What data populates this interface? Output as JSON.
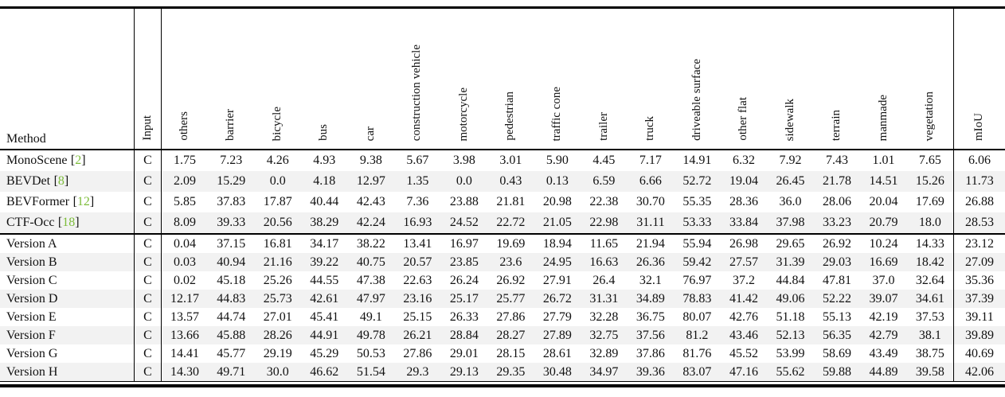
{
  "colors": {
    "stripe": "#f2f2f2",
    "citation_green": "#7cbc39",
    "rule": "#000000",
    "text": "#111111",
    "background": "#ffffff"
  },
  "table": {
    "method_header": "Method",
    "input_header": "Input",
    "miou_header": "mIoU",
    "citation_brackets": {
      "open": "[",
      "close": "]"
    },
    "class_headers": [
      "others",
      "barrier",
      "bicycle",
      "bus",
      "car",
      "construction vehicle",
      "motorcycle",
      "pedestrian",
      "traffic cone",
      "trailer",
      "truck",
      "driveable surface",
      "other flat",
      "sidewalk",
      "terrain",
      "manmade",
      "vegetation"
    ],
    "groups": [
      {
        "rows": [
          {
            "method": "MonoScene",
            "cite_num": "2",
            "input": "C",
            "values": [
              "1.75",
              "7.23",
              "4.26",
              "4.93",
              "9.38",
              "5.67",
              "3.98",
              "3.01",
              "5.90",
              "4.45",
              "7.17",
              "14.91",
              "6.32",
              "7.92",
              "7.43",
              "1.01",
              "7.65"
            ],
            "miou": "6.06"
          },
          {
            "method": "BEVDet",
            "cite_num": "8",
            "input": "C",
            "values": [
              "2.09",
              "15.29",
              "0.0",
              "4.18",
              "12.97",
              "1.35",
              "0.0",
              "0.43",
              "0.13",
              "6.59",
              "6.66",
              "52.72",
              "19.04",
              "26.45",
              "21.78",
              "14.51",
              "15.26"
            ],
            "miou": "11.73"
          },
          {
            "method": "BEVFormer",
            "cite_num": "12",
            "input": "C",
            "values": [
              "5.85",
              "37.83",
              "17.87",
              "40.44",
              "42.43",
              "7.36",
              "23.88",
              "21.81",
              "20.98",
              "22.38",
              "30.70",
              "55.35",
              "28.36",
              "36.0",
              "28.06",
              "20.04",
              "17.69"
            ],
            "miou": "26.88"
          },
          {
            "method": "CTF-Occ",
            "cite_num": "18",
            "input": "C",
            "values": [
              "8.09",
              "39.33",
              "20.56",
              "38.29",
              "42.24",
              "16.93",
              "24.52",
              "22.72",
              "21.05",
              "22.98",
              "31.11",
              "53.33",
              "33.84",
              "37.98",
              "33.23",
              "20.79",
              "18.0"
            ],
            "miou": "28.53"
          }
        ]
      },
      {
        "rows": [
          {
            "method": "Version A",
            "input": "C",
            "values": [
              "0.04",
              "37.15",
              "16.81",
              "34.17",
              "38.22",
              "13.41",
              "16.97",
              "19.69",
              "18.94",
              "11.65",
              "21.94",
              "55.94",
              "26.98",
              "29.65",
              "26.92",
              "10.24",
              "14.33"
            ],
            "miou": "23.12"
          },
          {
            "method": "Version B",
            "input": "C",
            "values": [
              "0.03",
              "40.94",
              "21.16",
              "39.22",
              "40.75",
              "20.57",
              "23.85",
              "23.6",
              "24.95",
              "16.63",
              "26.36",
              "59.42",
              "27.57",
              "31.39",
              "29.03",
              "16.69",
              "18.42"
            ],
            "miou": "27.09"
          },
          {
            "method": "Version C",
            "input": "C",
            "values": [
              "0.02",
              "45.18",
              "25.26",
              "44.55",
              "47.38",
              "22.63",
              "26.24",
              "26.92",
              "27.91",
              "26.4",
              "32.1",
              "76.97",
              "37.2",
              "44.84",
              "47.81",
              "37.0",
              "32.64"
            ],
            "miou": "35.36"
          },
          {
            "method": "Version D",
            "input": "C",
            "values": [
              "12.17",
              "44.83",
              "25.73",
              "42.61",
              "47.97",
              "23.16",
              "25.17",
              "25.77",
              "26.72",
              "31.31",
              "34.89",
              "78.83",
              "41.42",
              "49.06",
              "52.22",
              "39.07",
              "34.61"
            ],
            "miou": "37.39"
          },
          {
            "method": "Version E",
            "input": "C",
            "values": [
              "13.57",
              "44.74",
              "27.01",
              "45.41",
              "49.1",
              "25.15",
              "26.33",
              "27.86",
              "27.79",
              "32.28",
              "36.75",
              "80.07",
              "42.76",
              "51.18",
              "55.13",
              "42.19",
              "37.53"
            ],
            "miou": "39.11"
          },
          {
            "method": "Version F",
            "input": "C",
            "values": [
              "13.66",
              "45.88",
              "28.26",
              "44.91",
              "49.78",
              "26.21",
              "28.84",
              "28.27",
              "27.89",
              "32.75",
              "37.56",
              "81.2",
              "43.46",
              "52.13",
              "56.35",
              "42.79",
              "38.1"
            ],
            "miou": "39.89"
          },
          {
            "method": "Version G",
            "input": "C",
            "values": [
              "14.41",
              "45.77",
              "29.19",
              "45.29",
              "50.53",
              "27.86",
              "29.01",
              "28.15",
              "28.61",
              "32.89",
              "37.86",
              "81.76",
              "45.52",
              "53.99",
              "58.69",
              "43.49",
              "38.75"
            ],
            "miou": "40.69"
          },
          {
            "method": "Version H",
            "input": "C",
            "values": [
              "14.30",
              "49.71",
              "30.0",
              "46.62",
              "51.54",
              "29.3",
              "29.13",
              "29.35",
              "30.48",
              "34.97",
              "39.36",
              "83.07",
              "47.16",
              "55.62",
              "59.88",
              "44.89",
              "39.58"
            ],
            "miou": "42.06"
          }
        ]
      }
    ]
  }
}
